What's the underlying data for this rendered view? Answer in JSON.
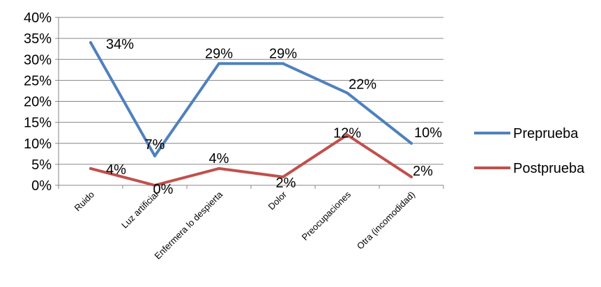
{
  "chart_data": {
    "type": "line",
    "categories": [
      "Ruido",
      "Luz artificial",
      "Enfermera lo despierta",
      "Dolor",
      "Preocupaciones",
      "Otra (incomodidad)"
    ],
    "series": [
      {
        "name": "Preprueba",
        "color": "#4f81bd",
        "values": [
          34,
          7,
          29,
          29,
          22,
          10
        ],
        "labels": [
          "34%",
          "7%",
          "29%",
          "29%",
          "22%",
          "10%"
        ]
      },
      {
        "name": "Postprueba",
        "color": "#c0504d",
        "values": [
          4,
          0,
          4,
          2,
          12,
          2
        ],
        "labels": [
          "4%",
          "0%",
          "4%",
          "2%",
          "12%",
          "2%"
        ]
      }
    ],
    "ylim": [
      0,
      40
    ],
    "yticks": [
      "0%",
      "5%",
      "10%",
      "15%",
      "20%",
      "25%",
      "30%",
      "35%",
      "40%"
    ],
    "grid": true,
    "legend": "right"
  }
}
